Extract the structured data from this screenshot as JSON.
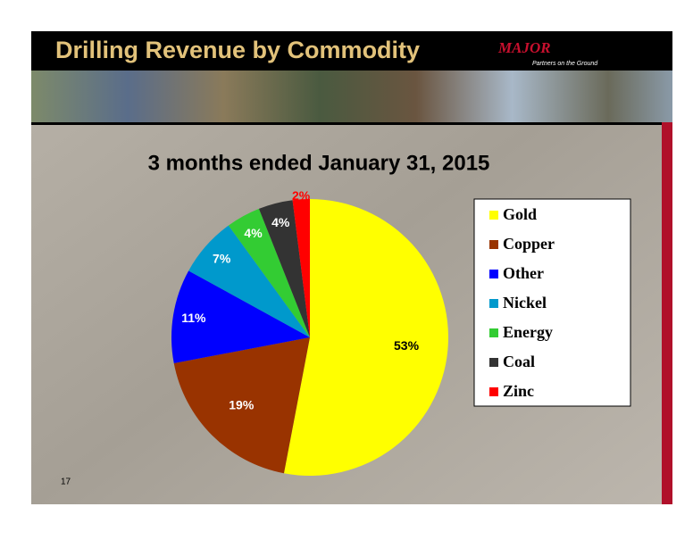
{
  "header": {
    "title": "Drilling Revenue by Commodity",
    "logo": "MAJOR",
    "tagline": "Partners on the Ground"
  },
  "page_number": "17",
  "chart_data": {
    "type": "pie",
    "title": "3 months ended January 31, 2015",
    "categories": [
      "Gold",
      "Copper",
      "Other",
      "Nickel",
      "Energy",
      "Coal",
      "Zinc"
    ],
    "values": [
      53,
      19,
      11,
      7,
      4,
      4,
      2
    ],
    "value_labels": [
      "53%",
      "19%",
      "11%",
      "7%",
      "4%",
      "4%",
      "2%"
    ],
    "colors": [
      "#ffff00",
      "#993300",
      "#0000ff",
      "#0099cc",
      "#33cc33",
      "#333333",
      "#ff0000"
    ],
    "legend": "right"
  }
}
